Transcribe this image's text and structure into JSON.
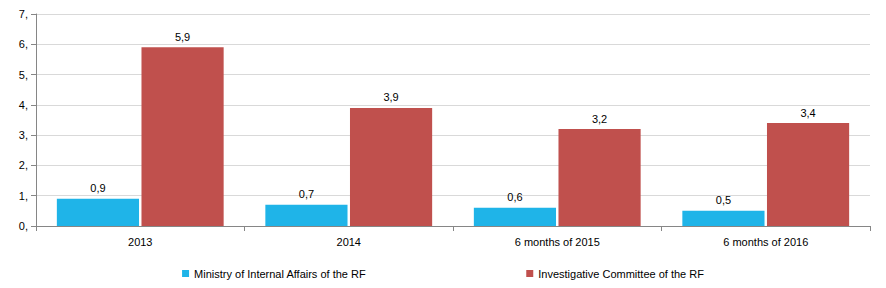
{
  "chart_data": {
    "type": "bar",
    "categories": [
      "2013",
      "2014",
      "6 months of 2015",
      "6 months of 2016"
    ],
    "series": [
      {
        "name": "Ministry of Internal Affairs of the RF",
        "color": "#1fb4e8",
        "values": [
          0.9,
          0.7,
          0.6,
          0.5
        ],
        "value_labels": [
          "0,9",
          "0,7",
          "0,6",
          "0,5"
        ]
      },
      {
        "name": "Investigative Committee of the RF",
        "color": "#c0504d",
        "values": [
          5.9,
          3.9,
          3.2,
          3.4
        ],
        "value_labels": [
          "5,9",
          "3,9",
          "3,2",
          "3,4"
        ]
      }
    ],
    "ylim": [
      0,
      7
    ],
    "yticks": [
      {
        "value": 0,
        "label": "0,"
      },
      {
        "value": 1,
        "label": "1,"
      },
      {
        "value": 2,
        "label": "2,"
      },
      {
        "value": 3,
        "label": "3,"
      },
      {
        "value": 4,
        "label": "4,"
      },
      {
        "value": 5,
        "label": "5,"
      },
      {
        "value": 6,
        "label": "6,"
      },
      {
        "value": 7,
        "label": "7,"
      }
    ],
    "grid": true,
    "legend": "bottom",
    "data_labels": true
  }
}
